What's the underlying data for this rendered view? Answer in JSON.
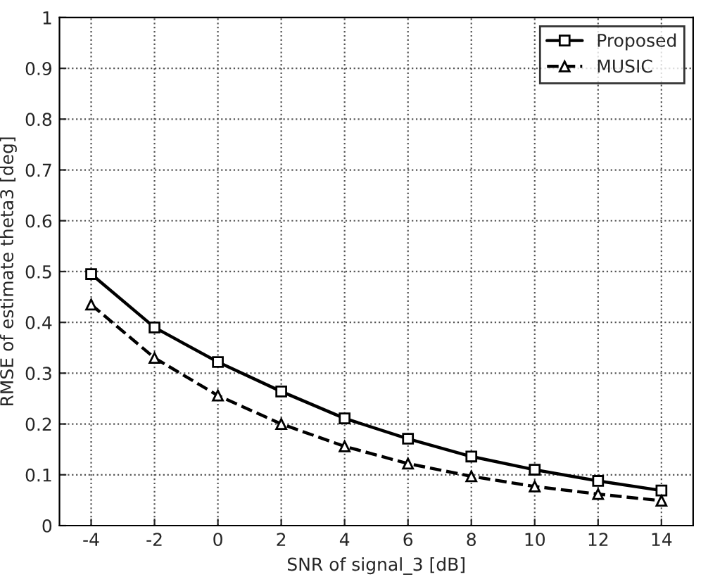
{
  "chart_data": {
    "type": "line",
    "xlabel": "SNR of signal_3 [dB]",
    "ylabel": "RMSE of estimate theta3 [deg]",
    "x": [
      -4,
      -2,
      0,
      2,
      4,
      6,
      8,
      10,
      12,
      14
    ],
    "series": [
      {
        "name": "Proposed",
        "color": "#000000",
        "marker": "square",
        "line_style": "solid",
        "values": [
          0.495,
          0.39,
          0.322,
          0.264,
          0.211,
          0.171,
          0.136,
          0.11,
          0.088,
          0.069
        ]
      },
      {
        "name": "MUSIC",
        "color": "#000000",
        "marker": "triangle",
        "line_style": "dashed",
        "values": [
          0.435,
          0.33,
          0.256,
          0.2,
          0.156,
          0.122,
          0.097,
          0.077,
          0.062,
          0.049
        ]
      }
    ],
    "xlim": [
      -5,
      15
    ],
    "xticks": [
      -4,
      -2,
      0,
      2,
      4,
      6,
      8,
      10,
      12,
      14
    ],
    "ylim": [
      0,
      1
    ],
    "yticks": [
      0,
      0.1,
      0.2,
      0.3,
      0.4,
      0.5,
      0.6,
      0.7,
      0.8,
      0.9,
      1
    ],
    "grid": true,
    "legend": "top right"
  }
}
